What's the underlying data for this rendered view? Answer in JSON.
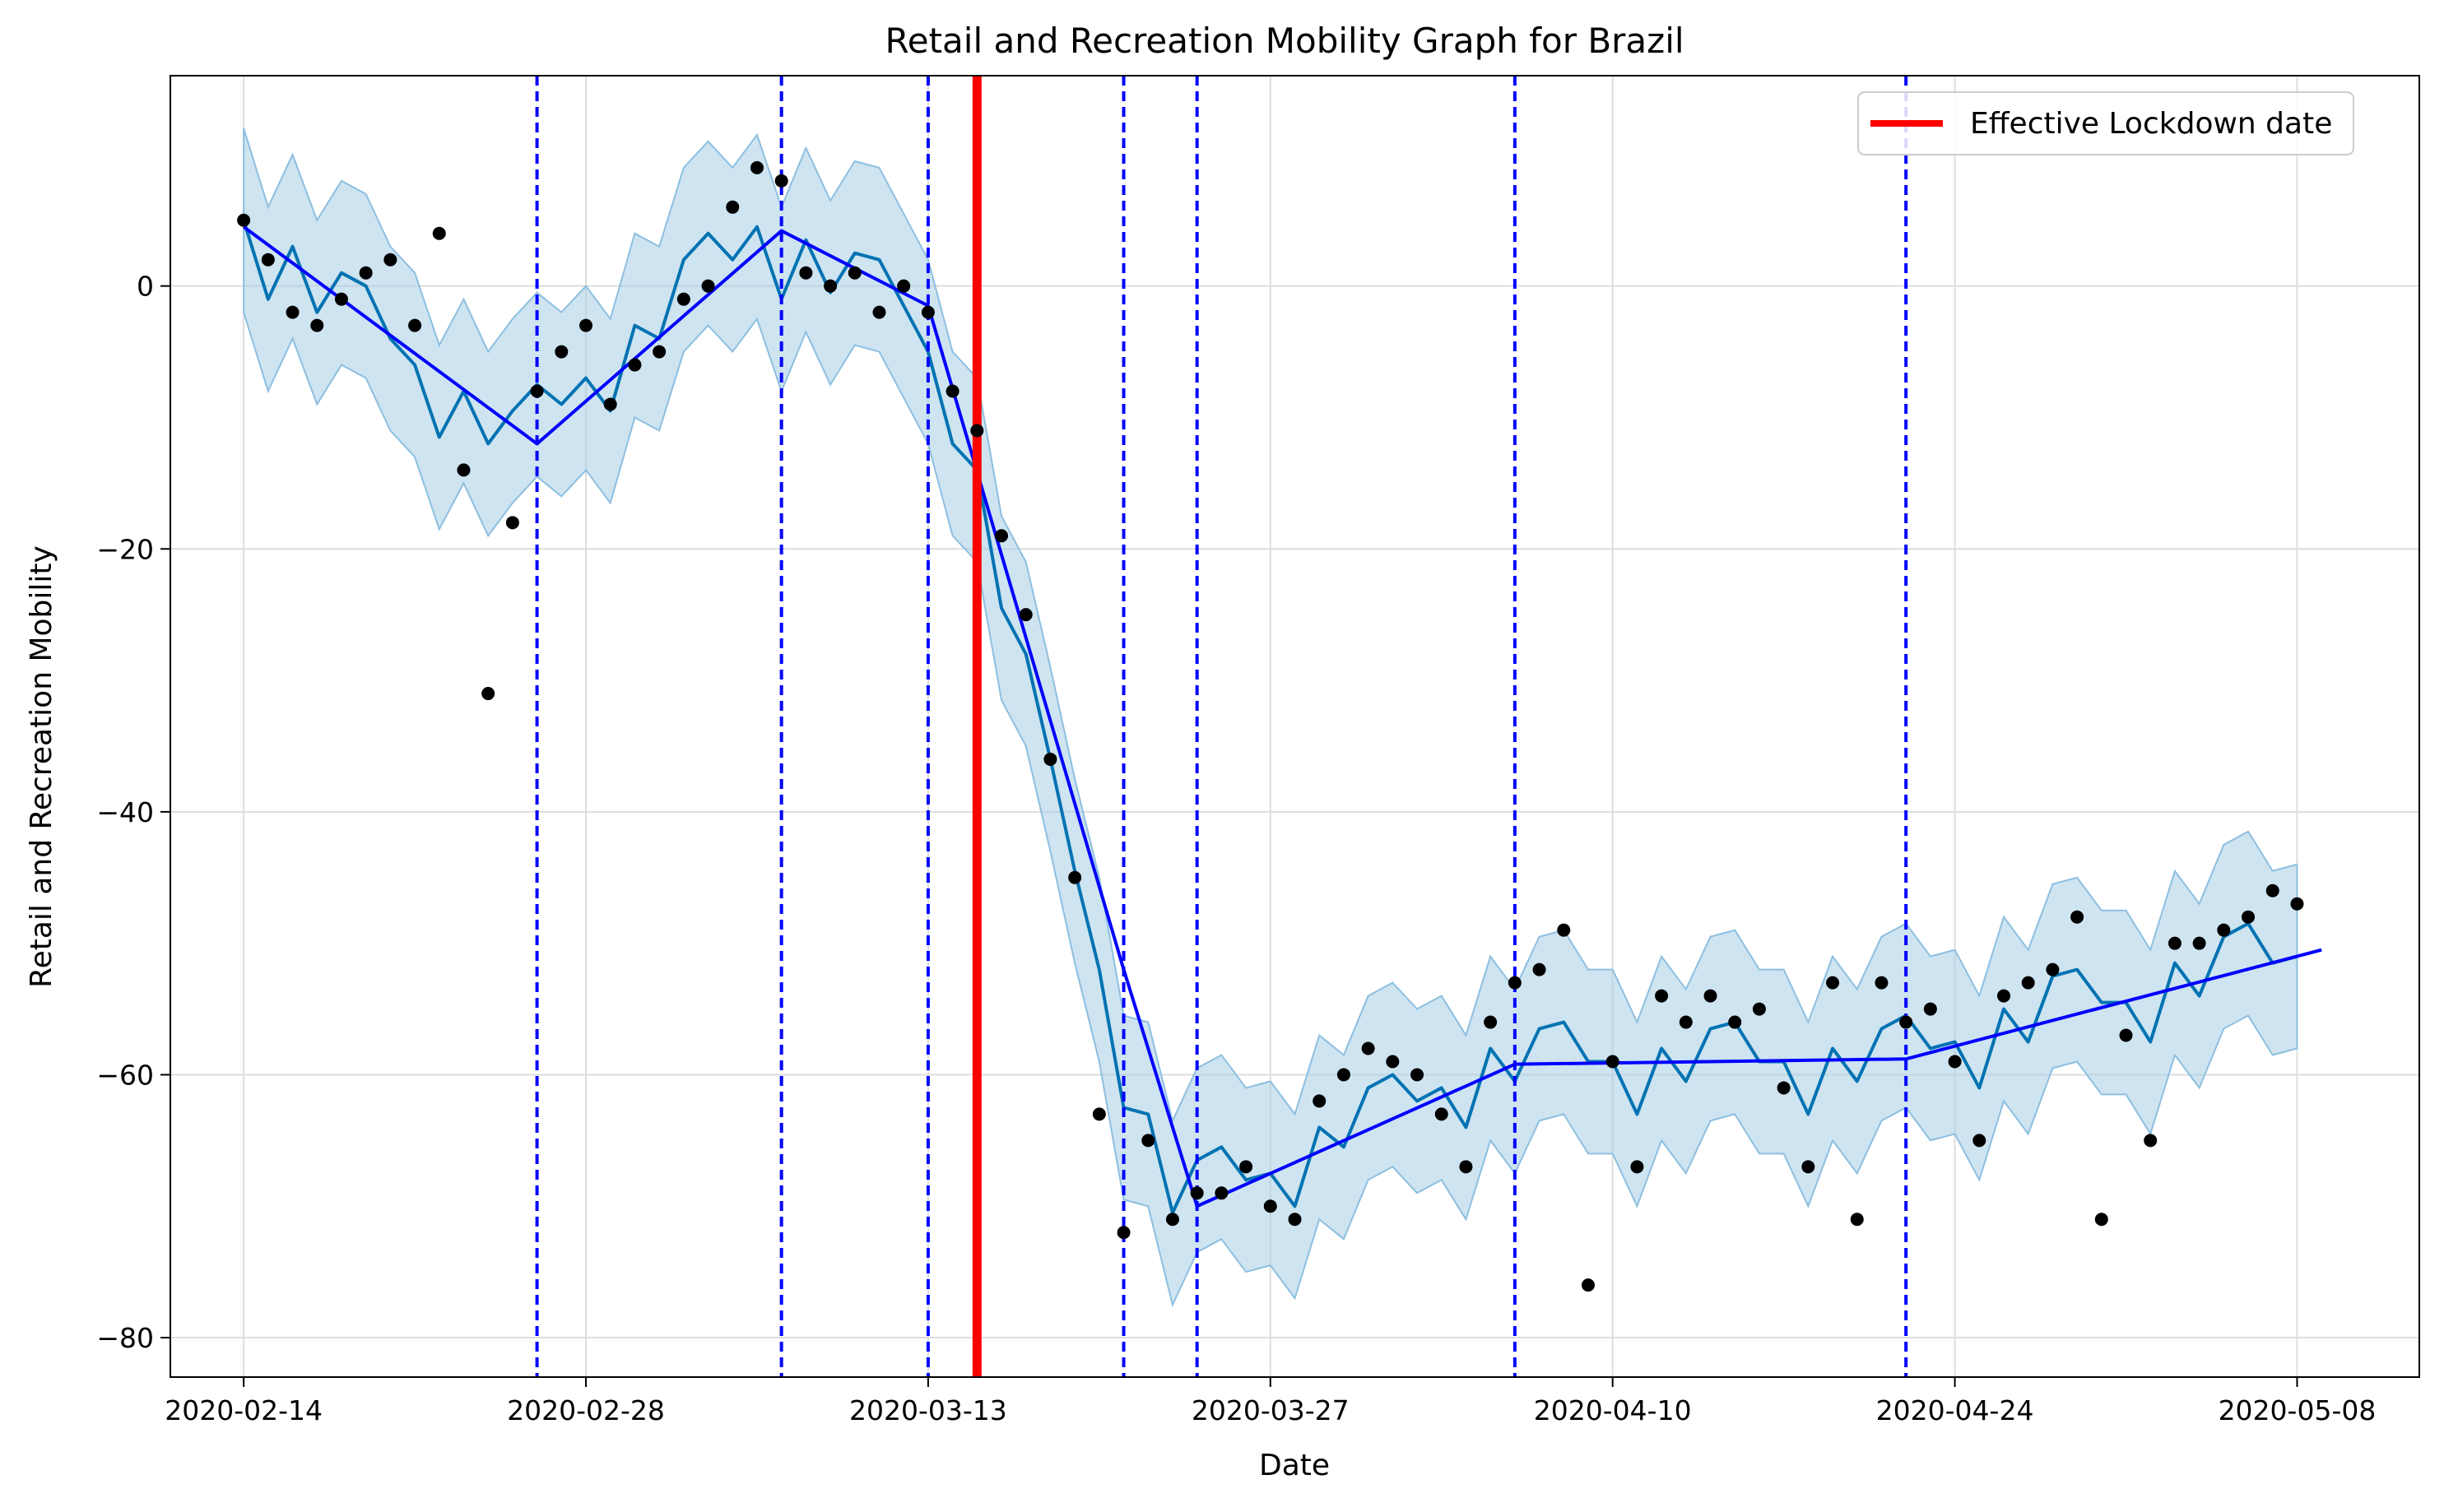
{
  "chart_data": {
    "type": "line",
    "title": "Retail and Recreation Mobility Graph for Brazil",
    "xlabel": "Date",
    "ylabel": "Retail and Recreation Mobility",
    "x_start": "2020-02-14",
    "x_end": "2020-05-09",
    "xlim": [
      "2020-02-11",
      "2020-05-13"
    ],
    "ylim": [
      -83,
      16
    ],
    "x_ticks": [
      "2020-02-14",
      "2020-02-28",
      "2020-03-13",
      "2020-03-27",
      "2020-04-10",
      "2020-04-24",
      "2020-05-08"
    ],
    "y_ticks": [
      0,
      -20,
      -40,
      -60,
      -80
    ],
    "grid": true,
    "legend_position": "top-right",
    "legend": [
      {
        "label": "Effective Lockdown date",
        "color": "#ff0000"
      }
    ],
    "lockdown_date": "2020-03-15",
    "changepoints": [
      "2020-02-26",
      "2020-03-07",
      "2020-03-13",
      "2020-03-21",
      "2020-03-24",
      "2020-04-06",
      "2020-04-22"
    ],
    "colors": {
      "observed": "#000000",
      "trend": "#0000ff",
      "forecast": "#0072b2",
      "interval": "#a6cde5",
      "lockdown": "#ff0000",
      "changepoint": "#0000ff",
      "grid": "#dddddd"
    },
    "observed": [
      5,
      2,
      -2,
      -3,
      -1,
      1,
      2,
      -3,
      4,
      -14,
      -31,
      -18,
      -8,
      -5,
      -3,
      -9,
      -6,
      -5,
      -1,
      0,
      6,
      9,
      8,
      1,
      0,
      1,
      -2,
      0,
      -2,
      -8,
      -11,
      -19,
      -25,
      -36,
      -45,
      -63,
      -72,
      -65,
      -71,
      -69,
      -69,
      -67,
      -70,
      -71,
      -62,
      -60,
      -58,
      -59,
      -60,
      -63,
      -67,
      -56,
      -53,
      -52,
      -49,
      -76,
      -59,
      -67,
      -54,
      -56,
      -54,
      -56,
      -55,
      -61,
      -67,
      -53,
      -71,
      -53,
      -56,
      -55,
      -59,
      -65,
      -54,
      -53,
      -52,
      -48,
      -71,
      -57,
      -65,
      -50,
      -50,
      -49,
      -48,
      -46,
      -47
    ],
    "forecast": [
      5,
      -1,
      3,
      -2,
      1,
      0,
      -4,
      -6,
      -11.5,
      -8,
      -12,
      -9.5,
      -7.5,
      -9,
      -7,
      -9.5,
      -3,
      -4,
      2,
      4,
      2,
      4.5,
      -1,
      3.5,
      -0.5,
      2.5,
      2,
      -1.5,
      -5,
      -12,
      -14,
      -24.5,
      -28,
      -36,
      -44.5,
      -52,
      -62.5,
      -63,
      -70.5,
      -66.5,
      -65.5,
      -68,
      -67.5,
      -70,
      -64,
      -65.5,
      -61,
      -60,
      -62,
      -61,
      -64,
      -58,
      -60.5,
      -56.5,
      -56,
      -59,
      -59,
      -63,
      -58,
      -60.5,
      -56.5,
      -56,
      -59,
      -59,
      -63,
      -58,
      -60.5,
      -56.5,
      -55.5,
      -58,
      -57.5,
      -61,
      -55,
      -57.5,
      -52.5,
      -52,
      -54.5,
      -54.5,
      -57.5,
      -51.5,
      -54,
      -49.5,
      -48.5,
      -51.5,
      -51
    ],
    "trend": [
      {
        "date": "2020-02-14",
        "value": 4.5
      },
      {
        "date": "2020-02-26",
        "value": -12
      },
      {
        "date": "2020-03-07",
        "value": 4.2
      },
      {
        "date": "2020-03-13",
        "value": -1.5
      },
      {
        "date": "2020-03-21",
        "value": -52
      },
      {
        "date": "2020-03-24",
        "value": -70
      },
      {
        "date": "2020-04-06",
        "value": -59.2
      },
      {
        "date": "2020-04-22",
        "value": -58.8
      },
      {
        "date": "2020-05-09",
        "value": -50.5
      }
    ],
    "interval_halfwidth": 7
  }
}
